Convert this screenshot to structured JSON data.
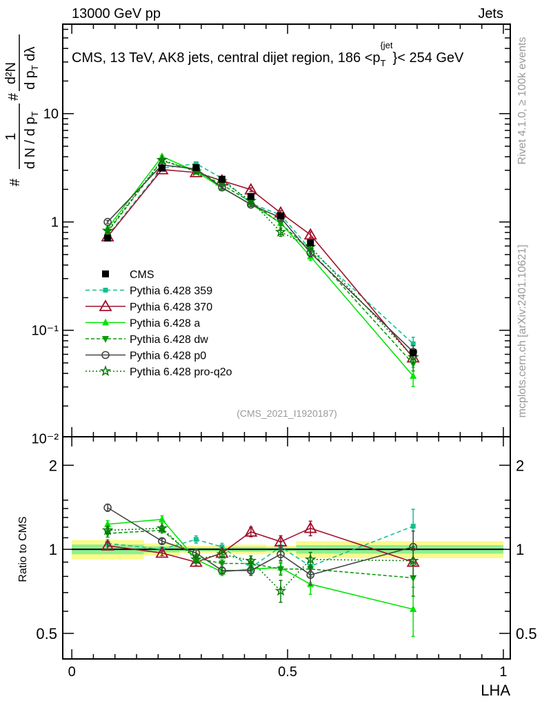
{
  "header": {
    "left": "13000 GeV pp",
    "right": "Jets"
  },
  "side_labels": {
    "rivet": "Rivet 4.1.0, ≥ 100k events",
    "mcplots": "mcplots.cern.ch [arXiv:2401.10621]"
  },
  "analysis_id": "(CMS_2021_I1920187)",
  "chart_data": {
    "type": "line",
    "title": "CMS, 13 TeV, AK8 jets, central dijet region, 186 <p_T^{jet}< 254 GeV",
    "title_parts": {
      "main": "CMS, 13 TeV, AK8 jets, central dijet region, 186 <p",
      "sub": "T",
      "sup": "{jet",
      "end": "}< 254 GeV"
    },
    "ylabel_parts": {
      "hash1": "#",
      "one": "1",
      "den1": "d N / d p",
      "den1_sub": "T",
      "hash2": "#",
      "num2": "d²N",
      "den2": "d p",
      "den2_sub": "T",
      "den2_end": " dλ"
    },
    "xlabel": "LHA",
    "ratio_ylabel": "Ratio to CMS",
    "xlim": [
      -0.021,
      1.016
    ],
    "ylim": [
      0.0104,
      67
    ],
    "yscale": "log",
    "ratio_ylim": [
      0.405,
      2.53
    ],
    "ratio_yscale": "log",
    "x_ticks": [
      0,
      0.5,
      1
    ],
    "x_tick_labels": [
      "0",
      "0.5",
      "1"
    ],
    "y_ticks": [
      0.01,
      0.1,
      1,
      10
    ],
    "y_tick_labels": [
      "10⁻²",
      "10⁻¹",
      "1",
      "10"
    ],
    "ratio_y_ticks": [
      0.5,
      1,
      2
    ],
    "ratio_y_tick_labels": [
      "0.5",
      "1",
      "2"
    ],
    "legend_placement": "center-left",
    "x": [
      0.083,
      0.209,
      0.288,
      0.348,
      0.415,
      0.484,
      0.553,
      0.791
    ],
    "bin_edges": [
      0,
      0.167,
      0.25,
      0.325,
      0.37,
      0.45,
      0.52,
      0.585,
      1.0
    ],
    "reference": {
      "name": "CMS",
      "values": [
        0.71,
        3.14,
        3.18,
        2.48,
        1.72,
        1.14,
        0.64,
        0.062
      ],
      "band_outer_rel": [
        0.08,
        0.05,
        0.03,
        0.03,
        0.04,
        0.03,
        0.07,
        0.07
      ],
      "band_inner_rel": [
        0.04,
        0.025,
        0.015,
        0.015,
        0.02,
        0.015,
        0.035,
        0.035
      ]
    },
    "series": [
      {
        "name": "Pythia 6.428 359",
        "color": "#13c08f",
        "dash": "6,4",
        "marker": "square-small",
        "ratio": [
          1.05,
          1.0,
          1.085,
          1.02,
          0.86,
          1.02,
          0.87,
          1.21
        ],
        "rel_err": [
          0.03,
          0.02,
          0.03,
          0.03,
          0.04,
          0.04,
          0.05,
          0.15
        ]
      },
      {
        "name": "Pythia 6.428 370",
        "color": "#a0102a",
        "dash": "",
        "marker": "triangle-open",
        "ratio": [
          1.03,
          0.97,
          0.9,
          0.97,
          1.155,
          1.065,
          1.19,
          0.9
        ],
        "rel_err": [
          0.03,
          0.02,
          0.03,
          0.03,
          0.04,
          0.05,
          0.06,
          0.12
        ]
      },
      {
        "name": "Pythia 6.428 a",
        "color": "#00e600",
        "dash": "",
        "marker": "triangle-up",
        "ratio": [
          1.23,
          1.28,
          0.92,
          0.83,
          0.85,
          0.86,
          0.75,
          0.61
        ],
        "rel_err": [
          0.03,
          0.03,
          0.03,
          0.03,
          0.04,
          0.05,
          0.08,
          0.2
        ]
      },
      {
        "name": "Pythia 6.428 dw",
        "color": "#0a9a0a",
        "dash": "5,3",
        "marker": "triangle-down",
        "ratio": [
          1.14,
          1.17,
          0.93,
          0.89,
          0.89,
          0.85,
          0.85,
          0.79
        ],
        "rel_err": [
          0.03,
          0.02,
          0.03,
          0.03,
          0.04,
          0.05,
          0.06,
          0.14
        ]
      },
      {
        "name": "Pythia 6.428 p0",
        "color": "#444444",
        "dash": "",
        "marker": "circle-open",
        "ratio": [
          1.41,
          1.07,
          0.97,
          0.84,
          0.84,
          0.96,
          0.81,
          1.02
        ],
        "rel_err": [
          0.03,
          0.02,
          0.03,
          0.03,
          0.04,
          0.05,
          0.08,
          0.14
        ]
      },
      {
        "name": "Pythia 6.428 pro-q2o",
        "color": "#087a08",
        "dash": "2,3",
        "marker": "star",
        "ratio": [
          1.17,
          1.19,
          0.92,
          0.96,
          0.91,
          0.71,
          0.92,
          0.91
        ],
        "rel_err": [
          0.03,
          0.02,
          0.03,
          0.03,
          0.04,
          0.09,
          0.06,
          0.12
        ]
      }
    ]
  }
}
